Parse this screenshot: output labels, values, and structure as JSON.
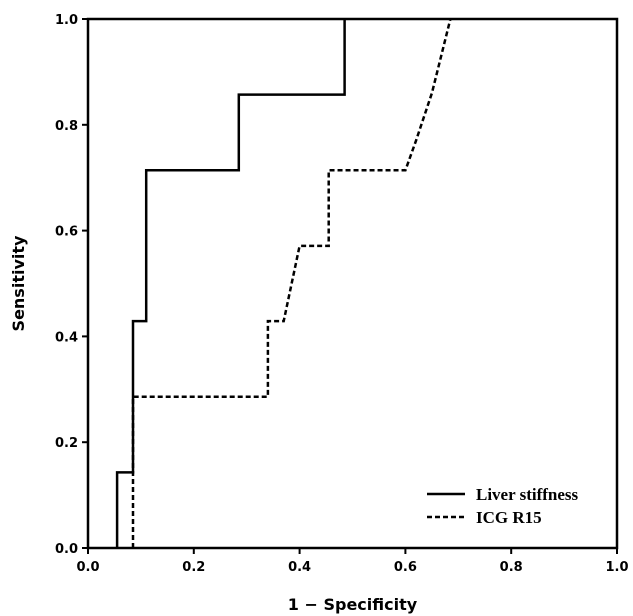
{
  "chart_data": {
    "type": "line",
    "title": "",
    "xlabel": "1 − Specificity",
    "ylabel": "Sensitivity",
    "xlim": [
      0,
      1
    ],
    "ylim": [
      0,
      1
    ],
    "xticks": [
      "0.0",
      "0.2",
      "0.4",
      "0.6",
      "0.8",
      "1.0"
    ],
    "yticks": [
      "0.0",
      "0.2",
      "0.4",
      "0.6",
      "0.8",
      "1.0"
    ],
    "grid": false,
    "legend_position": "bottom-right",
    "series": [
      {
        "name": "Liver stiffness",
        "style": "solid",
        "color": "#000000",
        "x": [
          0.055,
          0.055,
          0.085,
          0.085,
          0.11,
          0.11,
          0.285,
          0.285,
          0.485,
          0.485
        ],
        "y": [
          0.0,
          0.143,
          0.143,
          0.429,
          0.429,
          0.714,
          0.714,
          0.857,
          0.857,
          1.0
        ]
      },
      {
        "name": "ICG R15",
        "style": "dashed",
        "color": "#000000",
        "x": [
          0.085,
          0.085,
          0.34,
          0.34,
          0.37,
          0.4,
          0.455,
          0.455,
          0.6,
          0.62,
          0.65,
          0.685
        ],
        "y": [
          0.0,
          0.286,
          0.286,
          0.429,
          0.429,
          0.571,
          0.571,
          0.714,
          0.714,
          0.77,
          0.86,
          1.0
        ]
      }
    ]
  }
}
